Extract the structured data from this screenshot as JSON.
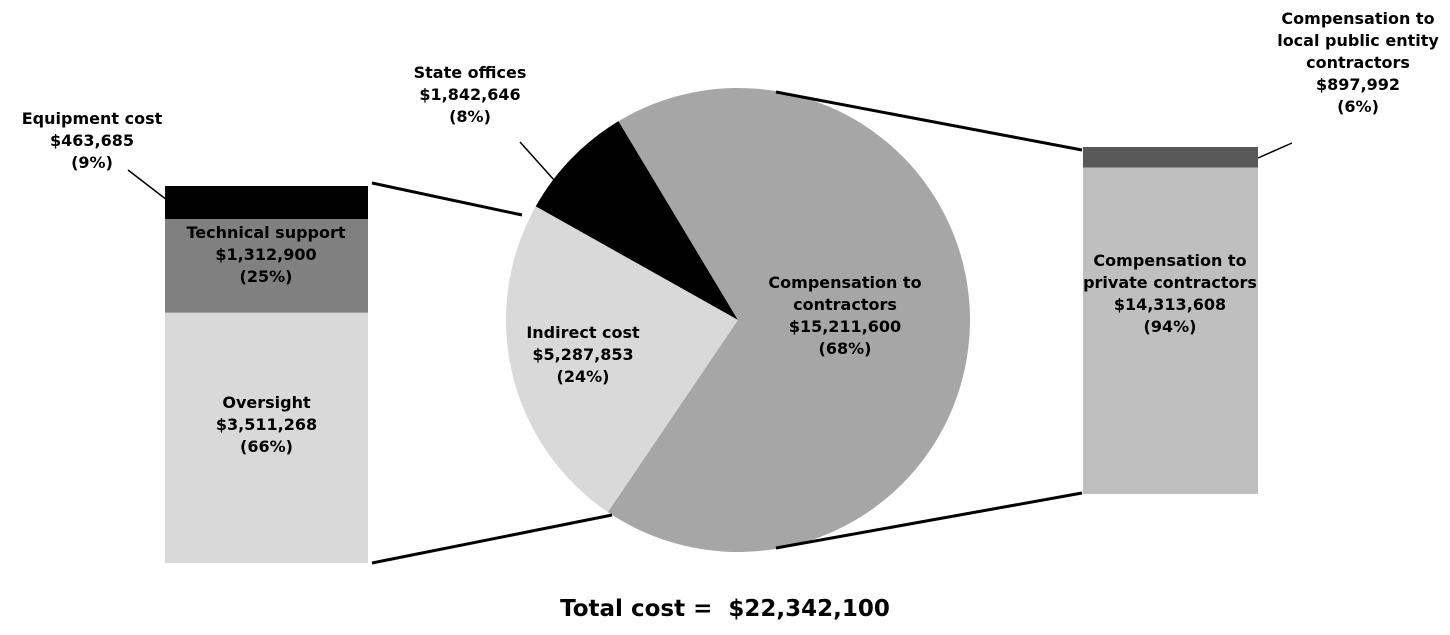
{
  "chart_data": [
    {
      "type": "pie",
      "categories": [
        "State offices",
        "Indirect cost",
        "Compensation to contractors"
      ],
      "values": [
        1842646,
        5287853,
        15211600
      ],
      "value_labels": [
        "$1,842,646",
        "$5,287,853",
        "$15,211,600"
      ],
      "percents": [
        8,
        24,
        68
      ],
      "percent_labels": [
        "(8%)",
        "(24%)",
        "(68%)"
      ],
      "colors": [
        "#000000",
        "#d9d9d9",
        "#a6a6a6"
      ],
      "annotation": "Total cost =  $22,342,100"
    },
    {
      "type": "stacked-bar",
      "categories": [
        "Equipment cost",
        "Technical support",
        "Oversight"
      ],
      "values": [
        463685,
        1312900,
        3511268
      ],
      "value_labels": [
        "$463,685",
        "$1,312,900",
        "$3,511,268"
      ],
      "percents": [
        9,
        25,
        66
      ],
      "percent_labels": [
        "(9%)",
        "(25%)",
        "(66%)"
      ],
      "colors": [
        "#000000",
        "#808080",
        "#d9d9d9"
      ]
    },
    {
      "type": "stacked-bar",
      "categories": [
        "Compensation to local public entity contractors",
        "Compensation to private contractors"
      ],
      "values": [
        897992,
        14313608
      ],
      "value_labels": [
        "$897,992",
        "$14,313,608"
      ],
      "percents": [
        6,
        94
      ],
      "percent_labels": [
        "(6%)",
        "(94%)"
      ],
      "colors": [
        "#595959",
        "#bfbfbf"
      ]
    }
  ]
}
